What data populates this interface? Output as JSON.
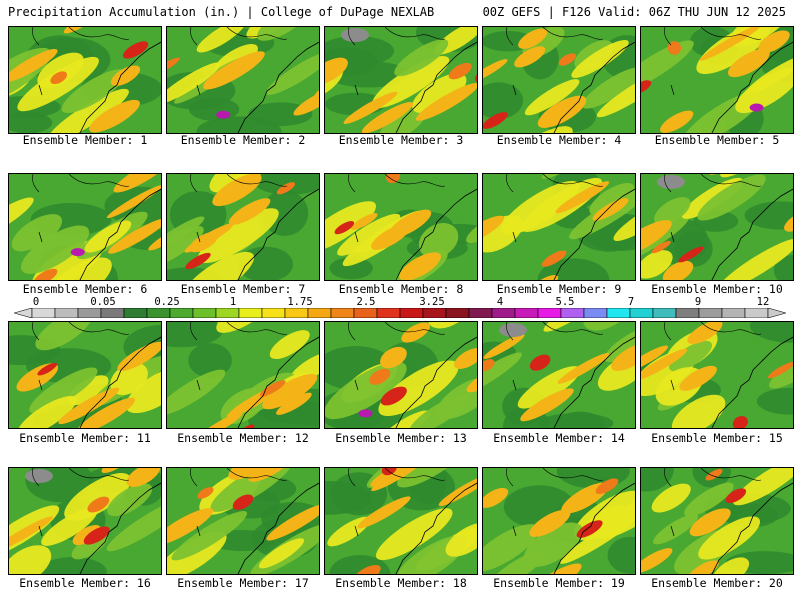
{
  "header": {
    "left": "Precipitation Accumulation (in.) | College of DuPage NEXLAB",
    "right": "00Z GEFS | F126 Valid: 06Z THU JUN 12 2025"
  },
  "members": [
    {
      "caption": "Ensemble Member: 1"
    },
    {
      "caption": "Ensemble Member: 2"
    },
    {
      "caption": "Ensemble Member: 3"
    },
    {
      "caption": "Ensemble Member: 4"
    },
    {
      "caption": "Ensemble Member: 5"
    },
    {
      "caption": "Ensemble Member: 6"
    },
    {
      "caption": "Ensemble Member: 7"
    },
    {
      "caption": "Ensemble Member: 8"
    },
    {
      "caption": "Ensemble Member: 9"
    },
    {
      "caption": "Ensemble Member: 10"
    },
    {
      "caption": "Ensemble Member: 11"
    },
    {
      "caption": "Ensemble Member: 12"
    },
    {
      "caption": "Ensemble Member: 13"
    },
    {
      "caption": "Ensemble Member: 14"
    },
    {
      "caption": "Ensemble Member: 15"
    },
    {
      "caption": "Ensemble Member: 16"
    },
    {
      "caption": "Ensemble Member: 17"
    },
    {
      "caption": "Ensemble Member: 18"
    },
    {
      "caption": "Ensemble Member: 19"
    },
    {
      "caption": "Ensemble Member: 20"
    }
  ],
  "colorbar": {
    "labels": [
      "0",
      "0.05",
      "0.25",
      "1",
      "1.75",
      "2.5",
      "3.25",
      "4",
      "5.5",
      "7",
      "9",
      "12"
    ],
    "colors": [
      "#d8d8d8",
      "#bdbdbd",
      "#9a9a9a",
      "#7a7a7a",
      "#2f7d32",
      "#3b9330",
      "#4caa2e",
      "#6cc02a",
      "#9ed624",
      "#e8ef1c",
      "#f7e21a",
      "#f8c814",
      "#f5a814",
      "#f0861a",
      "#e8621c",
      "#e0331c",
      "#c81818",
      "#a8141c",
      "#8a1420",
      "#801a50",
      "#a01a8a",
      "#c81ab8",
      "#e81ae6",
      "#b060f0",
      "#7a8cf4",
      "#22e6f0",
      "#20d0d2",
      "#40bcbc",
      "#7e7e7e",
      "#9c9c9c",
      "#b4b4b4",
      "#cacaca"
    ]
  },
  "map_palette": {
    "dark_green": "#2f8a2e",
    "green": "#48a832",
    "light_green": "#7cc230",
    "yellow": "#e8e820",
    "orange": "#f4b418",
    "dark_orange": "#ee7a1a",
    "red": "#d62418",
    "dark_red": "#a81622",
    "magenta": "#b81ab0",
    "gray": "#8c8c8c"
  }
}
